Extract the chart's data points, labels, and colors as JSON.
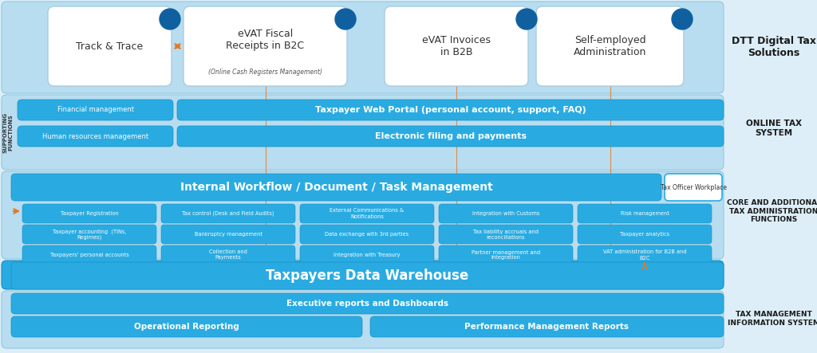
{
  "bg_light": "#cce9f5",
  "bg_medium": "#29abe2",
  "bg_section": "#a8d8ea",
  "white": "#ffffff",
  "orange": "#e8711a",
  "text_dark": "#1a1a1a",
  "text_white": "#ffffff",
  "badge_blue": "#1565a0",
  "section1_label": "DTT Digital Tax\nSolutions",
  "section2_label": "ONLINE TAX\nSYSTEM",
  "section3_label": "CORE AND ADDITIONAL\nTAX ADMINISTRATION\nFUNCTIONS",
  "section4_label": "TAX MANAGEMENT\nINFORMATION SYSTEM",
  "top_boxes": [
    {
      "text": "Track & Trace",
      "sub": ""
    },
    {
      "text": "eVAT Fiscal\nReceipts in B2C",
      "sub": "(Online Cash Registers Management)"
    },
    {
      "text": "eVAT Invoices\nin B2B",
      "sub": ""
    },
    {
      "text": "Self-employed\nAdministration",
      "sub": ""
    }
  ],
  "support_left_boxes": [
    "Financial management",
    "Human resources management"
  ],
  "support_right_box1": "Taxpayer Web Portal (personal account, support, FAQ)",
  "support_right_box2": "Electronic filing and payments",
  "workflow_box": "Internal Workflow / Document / Task Management",
  "workflow_right": "Tax Officer Workplace",
  "core_boxes_row0": [
    "Taxpayer Registration",
    "Tax control (Desk and Field Audits)",
    "External Communications &\nNotifications",
    "Integration with Customs",
    "Risk management"
  ],
  "core_boxes_row1": [
    "Taxpayer accounting  (TINs,\nRegimes)",
    "Bankruptcy management",
    "Data exchange with 3rd parties",
    "Tax liability accruals and\nreconciliations",
    "Taxpayer analytics"
  ],
  "core_boxes_row2": [
    "Taxpayers' personal accounts",
    "Collection and\nPayments",
    "Integration with Treasury",
    "Partner management and\nintegration",
    "VAT administration for B2B and\nB2C"
  ],
  "warehouse_box": "Taxpayers Data Warehouse",
  "tmis_box0": "Executive reports and Dashboards",
  "tmis_box1": "Operational Reporting",
  "tmis_box2": "Performance Management Reports"
}
